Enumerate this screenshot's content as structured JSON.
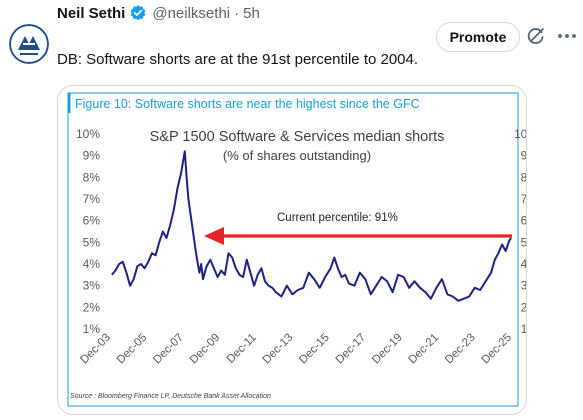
{
  "tweet": {
    "author_name": "Neil Sethi",
    "handle": "@neilksethi",
    "separator": "·",
    "time": "5h",
    "text": "DB: Software shorts are at the 91st percentile to 2004.",
    "verified_color": "#1d9bf0"
  },
  "actions": {
    "promote_label": "Promote",
    "grok_icon": "slash-circle-icon",
    "more_icon": "ellipsis-icon"
  },
  "avatar": {
    "icon": "logo-icon",
    "color": "#1f4e8c"
  },
  "figure": {
    "caption": "Figure 10: Software shorts are near the highest since the GFC",
    "caption_color": "#1a9fd6",
    "source": "Source : Bloomberg Finance LP, Deutsche Bank Asset Allocation",
    "annotation": "Current percentile: 91%",
    "arrow_color": "#e3262a",
    "line_color": "#1c2380"
  },
  "chart_data": {
    "type": "line",
    "title": "S&P 1500 Software & Services median shorts",
    "subtitle": "(% of shares outstanding)",
    "xlabel": "",
    "ylabel": "",
    "ylim": [
      1,
      10
    ],
    "yticks": [
      "10%",
      "9%",
      "8%",
      "7%",
      "6%",
      "5%",
      "4%",
      "3%",
      "2%",
      "1%"
    ],
    "xticks": [
      "Dec-03",
      "Dec-05",
      "Dec-07",
      "Dec-09",
      "Dec-11",
      "Dec-13",
      "Dec-15",
      "Dec-17",
      "Dec-19",
      "Dec-21",
      "Dec-23",
      "Dec-25"
    ],
    "xlim": [
      2003.9,
      2026.0
    ],
    "grid": false,
    "series": [
      {
        "x": [
          2004.0,
          2004.2,
          2004.4,
          2004.6,
          2004.8,
          2005.0,
          2005.2,
          2005.4,
          2005.6,
          2005.8,
          2006.0,
          2006.2,
          2006.4,
          2006.6,
          2006.8,
          2007.0,
          2007.2,
          2007.4,
          2007.6,
          2007.8,
          2008.0,
          2008.1,
          2008.2,
          2008.3,
          2008.4,
          2008.5,
          2008.6,
          2008.7,
          2008.8,
          2008.9,
          2009.0,
          2009.2,
          2009.4,
          2009.6,
          2009.8,
          2010.0,
          2010.2,
          2010.4,
          2010.6,
          2010.8,
          2011.0,
          2011.2,
          2011.4,
          2011.6,
          2011.8,
          2012.0,
          2012.2,
          2012.4,
          2012.6,
          2012.8,
          2013.0,
          2013.3,
          2013.6,
          2013.9,
          2014.2,
          2014.5,
          2014.8,
          2015.1,
          2015.4,
          2015.7,
          2016.0,
          2016.2,
          2016.4,
          2016.6,
          2016.8,
          2017.0,
          2017.3,
          2017.6,
          2017.9,
          2018.2,
          2018.5,
          2018.8,
          2019.1,
          2019.4,
          2019.7,
          2020.0,
          2020.3,
          2020.6,
          2020.9,
          2021.2,
          2021.5,
          2021.8,
          2022.1,
          2022.4,
          2022.7,
          2023.0,
          2023.3,
          2023.6,
          2023.9,
          2024.2,
          2024.5,
          2024.8,
          2025.0,
          2025.2,
          2025.4,
          2025.6,
          2025.8,
          2025.9
        ],
        "values": [
          3.5,
          3.7,
          4.0,
          4.1,
          3.6,
          3.0,
          3.3,
          3.9,
          4.0,
          3.8,
          4.1,
          4.5,
          4.4,
          5.0,
          5.5,
          5.2,
          5.8,
          6.5,
          7.5,
          8.2,
          9.2,
          8.0,
          7.0,
          6.4,
          5.8,
          5.2,
          4.6,
          4.1,
          3.6,
          4.0,
          3.3,
          3.9,
          4.2,
          3.8,
          3.4,
          3.7,
          3.5,
          4.5,
          4.3,
          3.8,
          3.5,
          3.4,
          4.2,
          3.6,
          3.0,
          3.5,
          3.8,
          3.2,
          3.0,
          2.9,
          2.7,
          2.5,
          3.0,
          2.6,
          2.8,
          2.9,
          3.6,
          3.3,
          2.9,
          3.4,
          3.8,
          4.3,
          3.8,
          3.4,
          3.5,
          3.1,
          3.0,
          3.6,
          3.3,
          2.6,
          3.0,
          3.4,
          3.2,
          2.7,
          3.5,
          3.4,
          2.9,
          3.2,
          2.9,
          2.7,
          2.4,
          2.9,
          3.3,
          2.6,
          2.5,
          2.3,
          2.4,
          2.5,
          2.9,
          2.8,
          3.2,
          3.6,
          4.2,
          4.5,
          4.9,
          4.6,
          5.1,
          5.2
        ]
      }
    ]
  }
}
